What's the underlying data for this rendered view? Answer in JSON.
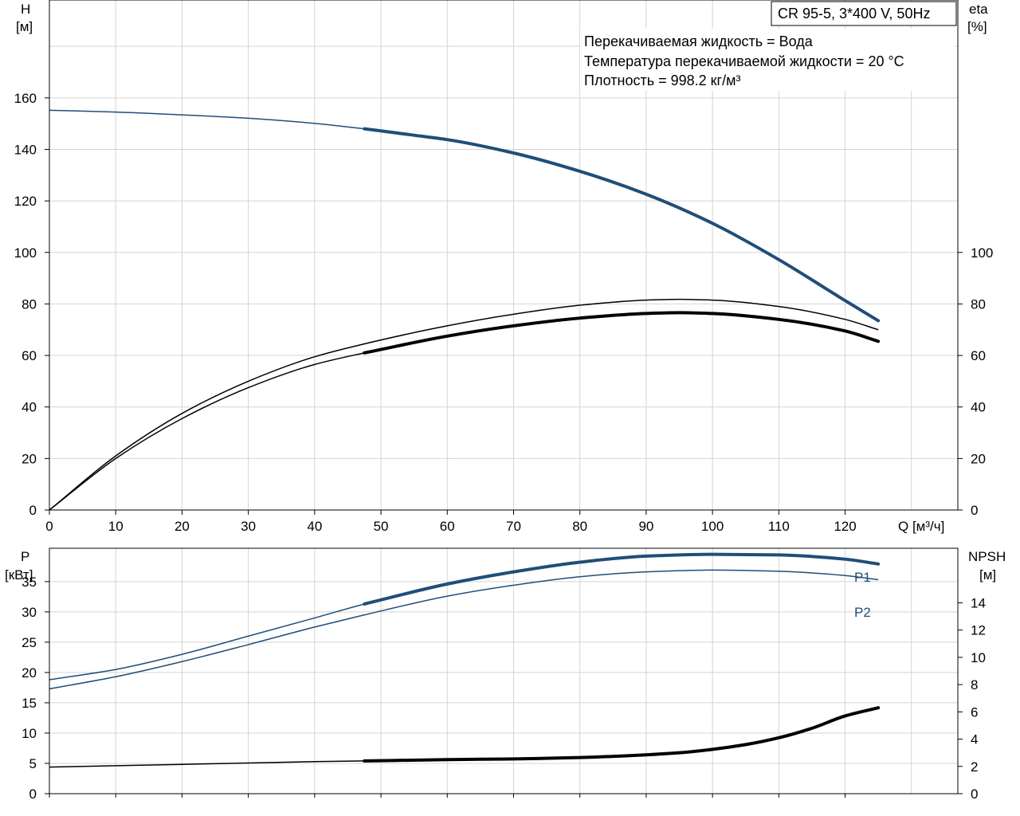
{
  "chart_data": [
    {
      "type": "line",
      "title": "CR 95-5, 3*400 V, 50Hz",
      "annotations": [
        "Перекачиваемая жидкость = Вода",
        "Температура перекачиваемой жидкости = 20 °C",
        "Плотность = 998.2 кг/м³"
      ],
      "xlabel": "Q [м³/ч]",
      "ylabel_left": [
        "H",
        "[м]"
      ],
      "ylabel_right": [
        "eta",
        "[%]"
      ],
      "xlim": [
        0,
        137
      ],
      "ylim_left": [
        0,
        198
      ],
      "ylim_right": [
        0,
        198
      ],
      "x_ticks": [
        0,
        10,
        20,
        30,
        40,
        50,
        60,
        70,
        80,
        90,
        100,
        110,
        120
      ],
      "y_ticks_left": [
        0,
        20,
        40,
        60,
        80,
        100,
        120,
        140,
        160
      ],
      "y_ticks_right": [
        0,
        20,
        40,
        60,
        80,
        100
      ],
      "grid": true,
      "series": [
        {
          "axis": "left",
          "color": "#1f4e79",
          "x": [
            0,
            10,
            20,
            30,
            40,
            47.5,
            55,
            60,
            70,
            80,
            90,
            100,
            110,
            120,
            125
          ],
          "y": [
            155.2,
            154.5,
            153.4,
            152.1,
            150.1,
            148,
            145.5,
            143.8,
            138.6,
            131.5,
            122.6,
            111.3,
            97.2,
            81.3,
            73.5
          ],
          "bold_from": 47.5
        },
        {
          "axis": "right",
          "color": "#000000",
          "x": [
            0,
            10,
            20,
            30,
            40,
            47.5,
            60,
            70,
            80,
            90,
            95,
            100,
            110,
            120,
            125
          ],
          "y": [
            0,
            21,
            37.5,
            50,
            59.5,
            64.5,
            71.5,
            76,
            79.5,
            81.5,
            81.8,
            81.5,
            79,
            74,
            70
          ],
          "bold_from": 125
        },
        {
          "axis": "right",
          "color": "#000000",
          "x": [
            0,
            10,
            20,
            30,
            40,
            47.5,
            60,
            70,
            80,
            90,
            95,
            100,
            110,
            120,
            125
          ],
          "y": [
            0,
            20,
            35.5,
            47.5,
            56.5,
            61,
            67.5,
            71.5,
            74.5,
            76.3,
            76.6,
            76.3,
            74,
            69.5,
            65.5
          ],
          "bold_from": 47.5
        }
      ]
    },
    {
      "type": "line",
      "xlim": [
        0,
        137
      ],
      "ylabel_left": [
        "P",
        "[кВт]"
      ],
      "ylabel_right": [
        "NPSH",
        "[м]"
      ],
      "ylim_left": [
        0,
        40.5
      ],
      "ylim_right": [
        0,
        18
      ],
      "y_ticks_left": [
        0,
        5,
        10,
        15,
        20,
        25,
        30,
        35
      ],
      "y_ticks_right": [
        0,
        2,
        4,
        6,
        8,
        10,
        12,
        14
      ],
      "grid": true,
      "series": [
        {
          "name": "P1",
          "axis": "left",
          "color": "#1f4e79",
          "x": [
            0,
            10,
            20,
            30,
            40,
            47.5,
            60,
            70,
            80,
            90,
            100,
            110,
            120,
            125
          ],
          "y": [
            18.8,
            20.5,
            23,
            26,
            29,
            31.3,
            34.6,
            36.6,
            38.2,
            39.2,
            39.5,
            39.4,
            38.7,
            37.9
          ],
          "bold_from": 47.5
        },
        {
          "name": "P2",
          "axis": "left",
          "color": "#1f4e79",
          "x": [
            0,
            10,
            20,
            30,
            40,
            47.5,
            60,
            70,
            80,
            90,
            100,
            110,
            120,
            125
          ],
          "y": [
            17.3,
            19.3,
            21.8,
            24.6,
            27.5,
            29.5,
            32.6,
            34.4,
            35.8,
            36.6,
            36.9,
            36.7,
            36,
            35.3
          ],
          "bold_from": 125
        },
        {
          "axis": "right",
          "color": "#000000",
          "x": [
            0,
            10,
            20,
            30,
            40,
            47.5,
            60,
            70,
            80,
            90,
            95,
            100,
            105,
            110,
            115,
            120,
            125
          ],
          "y": [
            1.95,
            2.05,
            2.15,
            2.25,
            2.35,
            2.4,
            2.5,
            2.55,
            2.65,
            2.85,
            3.0,
            3.25,
            3.6,
            4.1,
            4.8,
            5.7,
            6.3
          ],
          "bold_from": 47.5
        }
      ]
    }
  ]
}
